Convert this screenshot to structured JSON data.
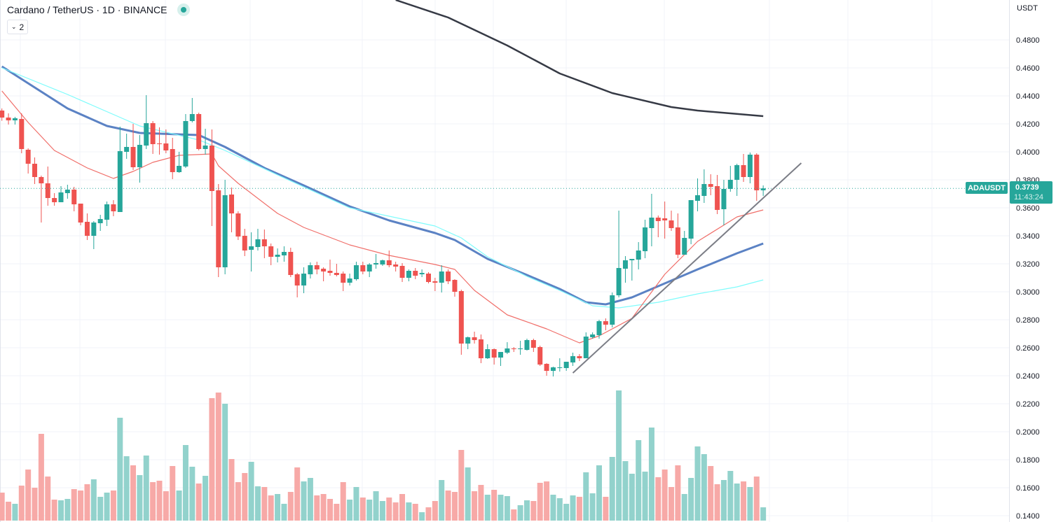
{
  "legend": {
    "title": "Cardano / TetherUS · 1D · BINANCE",
    "collapse_count": "2",
    "status_icon": "live-dot-icon"
  },
  "price_tag": {
    "symbol": "ADAUSDT",
    "price": "0.3739",
    "countdown": "11:43:24"
  },
  "colors": {
    "up": "#26a69a",
    "down": "#ef5350",
    "up_volume": "#92d2cc",
    "down_volume": "#f7a9a7",
    "ma_blue": "#5b82c4",
    "ma_cyan": "#7ffcfc",
    "ma_red": "#f06e69",
    "ma_dark": "#363a45",
    "trendline": "#7b7d86"
  },
  "chart_data": {
    "type": "candlestick",
    "title": "Cardano / TetherUS · 1D · BINANCE",
    "y_unit": "USDT",
    "ylim": [
      0.14,
      0.5
    ],
    "y_ticks": [
      "0.4800",
      "0.4600",
      "0.4400",
      "0.4200",
      "0.4000",
      "0.3800",
      "0.3600",
      "0.3400",
      "0.3200",
      "0.3000",
      "0.2800",
      "0.2600",
      "0.2400",
      "0.2200",
      "0.2000",
      "0.1800",
      "0.1600",
      "0.1400"
    ],
    "grid": true,
    "last_price": 0.3739,
    "ohlc": [
      [
        0.4295,
        0.431,
        0.4222,
        0.4245
      ],
      [
        0.4245,
        0.4275,
        0.4195,
        0.4225
      ],
      [
        0.4225,
        0.425,
        0.4195,
        0.424
      ],
      [
        0.4235,
        0.4275,
        0.399,
        0.402
      ],
      [
        0.4015,
        0.4025,
        0.3845,
        0.3915
      ],
      [
        0.3915,
        0.396,
        0.377,
        0.382
      ],
      [
        0.382,
        0.383,
        0.3495,
        0.3775
      ],
      [
        0.3775,
        0.3895,
        0.3615,
        0.367
      ],
      [
        0.367,
        0.3705,
        0.3615,
        0.364
      ],
      [
        0.364,
        0.3755,
        0.364,
        0.371
      ],
      [
        0.3705,
        0.3765,
        0.3665,
        0.373
      ],
      [
        0.373,
        0.375,
        0.3575,
        0.3625
      ],
      [
        0.363,
        0.363,
        0.3475,
        0.3495
      ],
      [
        0.35,
        0.356,
        0.337,
        0.34
      ],
      [
        0.34,
        0.3505,
        0.3305,
        0.3495
      ],
      [
        0.349,
        0.355,
        0.3435,
        0.352
      ],
      [
        0.3515,
        0.3645,
        0.347,
        0.3625
      ],
      [
        0.3625,
        0.3655,
        0.354,
        0.3575
      ],
      [
        0.357,
        0.418,
        0.357,
        0.4005
      ],
      [
        0.4,
        0.413,
        0.395,
        0.4035
      ],
      [
        0.4035,
        0.42,
        0.387,
        0.389
      ],
      [
        0.389,
        0.412,
        0.378,
        0.405
      ],
      [
        0.4045,
        0.4405,
        0.402,
        0.4205
      ],
      [
        0.4205,
        0.422,
        0.3985,
        0.4055
      ],
      [
        0.406,
        0.4175,
        0.398,
        0.4055
      ],
      [
        0.406,
        0.416,
        0.399,
        0.401
      ],
      [
        0.402,
        0.41,
        0.3805,
        0.3855
      ],
      [
        0.3855,
        0.4,
        0.385,
        0.39
      ],
      [
        0.3895,
        0.427,
        0.3885,
        0.422
      ],
      [
        0.422,
        0.4385,
        0.421,
        0.427
      ],
      [
        0.427,
        0.428,
        0.401,
        0.402
      ],
      [
        0.402,
        0.4165,
        0.398,
        0.4045
      ],
      [
        0.4045,
        0.416,
        0.347,
        0.372
      ],
      [
        0.3725,
        0.377,
        0.3105,
        0.3175
      ],
      [
        0.3175,
        0.38,
        0.3125,
        0.369
      ],
      [
        0.3695,
        0.3745,
        0.3425,
        0.356
      ],
      [
        0.356,
        0.3575,
        0.337,
        0.3395
      ],
      [
        0.34,
        0.345,
        0.3255,
        0.3295
      ],
      [
        0.33,
        0.3425,
        0.3145,
        0.3325
      ],
      [
        0.332,
        0.345,
        0.3295,
        0.3375
      ],
      [
        0.3375,
        0.3445,
        0.324,
        0.3325
      ],
      [
        0.3325,
        0.3345,
        0.319,
        0.325
      ],
      [
        0.325,
        0.331,
        0.321,
        0.3265
      ],
      [
        0.326,
        0.3325,
        0.3215,
        0.3285
      ],
      [
        0.3285,
        0.3315,
        0.3105,
        0.312
      ],
      [
        0.3125,
        0.3135,
        0.296,
        0.3045
      ],
      [
        0.3045,
        0.3175,
        0.299,
        0.313
      ],
      [
        0.3125,
        0.321,
        0.3095,
        0.319
      ],
      [
        0.319,
        0.3215,
        0.3125,
        0.316
      ],
      [
        0.3165,
        0.3175,
        0.3075,
        0.3145
      ],
      [
        0.315,
        0.323,
        0.3115,
        0.3135
      ],
      [
        0.3135,
        0.32,
        0.311,
        0.312
      ],
      [
        0.313,
        0.3145,
        0.3005,
        0.3065
      ],
      [
        0.3065,
        0.313,
        0.3045,
        0.3095
      ],
      [
        0.309,
        0.3215,
        0.308,
        0.319
      ],
      [
        0.319,
        0.3215,
        0.3125,
        0.3145
      ],
      [
        0.3145,
        0.3205,
        0.3105,
        0.3195
      ],
      [
        0.3195,
        0.327,
        0.3165,
        0.3205
      ],
      [
        0.3195,
        0.323,
        0.3185,
        0.3225
      ],
      [
        0.3225,
        0.3295,
        0.3175,
        0.319
      ],
      [
        0.3195,
        0.3215,
        0.3145,
        0.318
      ],
      [
        0.3185,
        0.3205,
        0.307,
        0.31
      ],
      [
        0.31,
        0.316,
        0.3075,
        0.315
      ],
      [
        0.315,
        0.317,
        0.309,
        0.3115
      ],
      [
        0.3125,
        0.316,
        0.3105,
        0.3135
      ],
      [
        0.313,
        0.314,
        0.306,
        0.307
      ],
      [
        0.3075,
        0.31,
        0.3005,
        0.3065
      ],
      [
        0.3065,
        0.319,
        0.2995,
        0.3145
      ],
      [
        0.3145,
        0.316,
        0.3055,
        0.3075
      ],
      [
        0.3085,
        0.309,
        0.2965,
        0.3
      ],
      [
        0.3005,
        0.3015,
        0.255,
        0.263
      ],
      [
        0.263,
        0.268,
        0.259,
        0.2675
      ],
      [
        0.2675,
        0.2715,
        0.263,
        0.2655
      ],
      [
        0.266,
        0.2695,
        0.249,
        0.2525
      ],
      [
        0.2525,
        0.2625,
        0.252,
        0.259
      ],
      [
        0.259,
        0.2595,
        0.248,
        0.253
      ],
      [
        0.253,
        0.257,
        0.247,
        0.257
      ],
      [
        0.2565,
        0.264,
        0.2555,
        0.2595
      ],
      [
        0.2595,
        0.2605,
        0.257,
        0.259
      ],
      [
        0.259,
        0.265,
        0.255,
        0.2595
      ],
      [
        0.2585,
        0.2665,
        0.258,
        0.2655
      ],
      [
        0.2655,
        0.2665,
        0.257,
        0.26
      ],
      [
        0.2605,
        0.2615,
        0.247,
        0.248
      ],
      [
        0.2485,
        0.249,
        0.24,
        0.2435
      ],
      [
        0.2435,
        0.2465,
        0.2395,
        0.246
      ],
      [
        0.2455,
        0.2525,
        0.243,
        0.246
      ],
      [
        0.2455,
        0.25,
        0.2435,
        0.25
      ],
      [
        0.2495,
        0.2565,
        0.247,
        0.254
      ],
      [
        0.254,
        0.2555,
        0.2505,
        0.2525
      ],
      [
        0.2525,
        0.271,
        0.2525,
        0.268
      ],
      [
        0.2675,
        0.271,
        0.2665,
        0.2695
      ],
      [
        0.269,
        0.28,
        0.2665,
        0.279
      ],
      [
        0.279,
        0.281,
        0.2725,
        0.2765
      ],
      [
        0.2765,
        0.2995,
        0.2745,
        0.2975
      ],
      [
        0.2975,
        0.358,
        0.296,
        0.317
      ],
      [
        0.3165,
        0.3255,
        0.3065,
        0.3225
      ],
      [
        0.3225,
        0.3235,
        0.308,
        0.3235
      ],
      [
        0.323,
        0.3355,
        0.316,
        0.3295
      ],
      [
        0.329,
        0.3515,
        0.324,
        0.346
      ],
      [
        0.3455,
        0.37,
        0.3325,
        0.353
      ],
      [
        0.353,
        0.3545,
        0.339,
        0.3505
      ],
      [
        0.3525,
        0.3645,
        0.338,
        0.351
      ],
      [
        0.351,
        0.358,
        0.3435,
        0.3455
      ],
      [
        0.346,
        0.356,
        0.324,
        0.3265
      ],
      [
        0.3265,
        0.3435,
        0.3265,
        0.3385
      ],
      [
        0.338,
        0.3655,
        0.334,
        0.3655
      ],
      [
        0.365,
        0.381,
        0.3575,
        0.369
      ],
      [
        0.3685,
        0.3875,
        0.3635,
        0.377
      ],
      [
        0.377,
        0.384,
        0.369,
        0.375
      ],
      [
        0.3755,
        0.3835,
        0.3555,
        0.3585
      ],
      [
        0.359,
        0.38,
        0.3475,
        0.3735
      ],
      [
        0.3735,
        0.39,
        0.3715,
        0.38
      ],
      [
        0.38,
        0.3915,
        0.3685,
        0.3905
      ],
      [
        0.3905,
        0.3985,
        0.3785,
        0.382
      ],
      [
        0.382,
        0.3995,
        0.3775,
        0.398
      ],
      [
        0.398,
        0.399,
        0.365,
        0.3725
      ],
      [
        0.3725,
        0.376,
        0.3685,
        0.3739
      ]
    ],
    "volume_relative": [
      40,
      27,
      24,
      50,
      73,
      47,
      124,
      63,
      30,
      29,
      31,
      45,
      43,
      52,
      59,
      34,
      40,
      43,
      147,
      92,
      79,
      65,
      93,
      55,
      57,
      42,
      78,
      43,
      108,
      77,
      53,
      64,
      175,
      183,
      167,
      88,
      55,
      68,
      84,
      49,
      48,
      36,
      38,
      24,
      41,
      76,
      56,
      61,
      36,
      38,
      31,
      24,
      55,
      30,
      48,
      33,
      30,
      42,
      28,
      33,
      26,
      38,
      26,
      24,
      12,
      19,
      28,
      58,
      43,
      41,
      101,
      76,
      42,
      51,
      37,
      44,
      37,
      35,
      16,
      22,
      29,
      28,
      54,
      56,
      37,
      32,
      24,
      36,
      34,
      69,
      39,
      79,
      34,
      91,
      186,
      85,
      67,
      115,
      70,
      133,
      62,
      73,
      48,
      79,
      38,
      61,
      106,
      95,
      78,
      52,
      58,
      71,
      53,
      56,
      48,
      63,
      19
    ],
    "moving_averages": [
      {
        "color_key": "ma_blue",
        "points": [
          [
            0,
            0.461
          ],
          [
            5,
            0.446
          ],
          [
            10,
            0.431
          ],
          [
            16,
            0.4185
          ],
          [
            21,
            0.4135
          ],
          [
            30,
            0.412
          ],
          [
            34,
            0.4035
          ],
          [
            40,
            0.3885
          ],
          [
            46,
            0.376
          ],
          [
            53,
            0.361
          ],
          [
            59,
            0.351
          ],
          [
            66,
            0.342
          ],
          [
            69,
            0.337
          ],
          [
            74,
            0.3235
          ],
          [
            80,
            0.312
          ],
          [
            85,
            0.302
          ],
          [
            89,
            0.2925
          ],
          [
            92,
            0.291
          ],
          [
            96,
            0.296
          ],
          [
            101,
            0.306
          ],
          [
            106,
            0.316
          ],
          [
            112,
            0.3275
          ],
          [
            116,
            0.3345
          ]
        ]
      },
      {
        "color_key": "ma_cyan",
        "points": [
          [
            0,
            0.46
          ],
          [
            10,
            0.441
          ],
          [
            21,
            0.4185
          ],
          [
            30,
            0.4085
          ],
          [
            34,
            0.401
          ],
          [
            42,
            0.3835
          ],
          [
            53,
            0.36
          ],
          [
            66,
            0.347
          ],
          [
            70,
            0.3385
          ],
          [
            74,
            0.325
          ],
          [
            80,
            0.311
          ],
          [
            85,
            0.301
          ],
          [
            90,
            0.29
          ],
          [
            94,
            0.2885
          ],
          [
            100,
            0.2925
          ],
          [
            106,
            0.2985
          ],
          [
            112,
            0.3035
          ],
          [
            116,
            0.3085
          ]
        ]
      },
      {
        "color_key": "ma_red",
        "points": [
          [
            0,
            0.4435
          ],
          [
            4,
            0.421
          ],
          [
            8,
            0.401
          ],
          [
            13,
            0.3885
          ],
          [
            17,
            0.381
          ],
          [
            20,
            0.386
          ],
          [
            23,
            0.3925
          ],
          [
            27,
            0.3975
          ],
          [
            32,
            0.3985
          ],
          [
            33,
            0.39
          ],
          [
            36,
            0.3775
          ],
          [
            42,
            0.356
          ],
          [
            46,
            0.346
          ],
          [
            53,
            0.3335
          ],
          [
            59,
            0.326
          ],
          [
            66,
            0.3195
          ],
          [
            69,
            0.316
          ],
          [
            72,
            0.301
          ],
          [
            77,
            0.2835
          ],
          [
            83,
            0.2735
          ],
          [
            88,
            0.2635
          ],
          [
            91,
            0.2685
          ],
          [
            96,
            0.281
          ],
          [
            101,
            0.3125
          ],
          [
            106,
            0.336
          ],
          [
            112,
            0.3535
          ],
          [
            116,
            0.3585
          ]
        ]
      },
      {
        "color_key": "ma_dark",
        "points": [
          [
            60,
            0.5085
          ],
          [
            68,
            0.496
          ],
          [
            77,
            0.476
          ],
          [
            85,
            0.456
          ],
          [
            93,
            0.442
          ],
          [
            102,
            0.432
          ],
          [
            106,
            0.4295
          ],
          [
            116,
            0.4255
          ]
        ]
      }
    ],
    "trendline": [
      [
        87,
        0.242
      ],
      [
        121.8,
        0.392
      ]
    ]
  }
}
